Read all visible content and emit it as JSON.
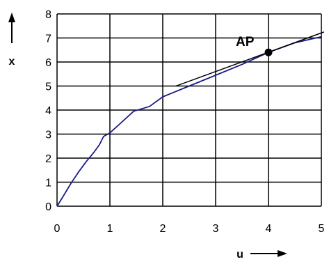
{
  "chart_data": {
    "type": "line",
    "title": "",
    "xlabel": "u",
    "ylabel": "x",
    "xlim": [
      0,
      5
    ],
    "ylim": [
      0,
      8
    ],
    "xticks": [
      "0",
      "1",
      "2",
      "3",
      "4",
      "5"
    ],
    "yticks": [
      "0",
      "1",
      "2",
      "3",
      "4",
      "5",
      "6",
      "7",
      "8"
    ],
    "grid": true,
    "legend": "none",
    "series": [
      {
        "color": "#1a1a8c",
        "points": [
          [
            0,
            0
          ],
          [
            0.1,
            0.35
          ],
          [
            0.25,
            0.9
          ],
          [
            0.4,
            1.4
          ],
          [
            0.55,
            1.85
          ],
          [
            0.7,
            2.25
          ],
          [
            0.8,
            2.55
          ],
          [
            0.88,
            2.9
          ],
          [
            1.0,
            3.05
          ],
          [
            1.2,
            3.45
          ],
          [
            1.45,
            3.95
          ],
          [
            1.75,
            4.15
          ],
          [
            2.0,
            4.55
          ],
          [
            2.5,
            5.0
          ],
          [
            3.0,
            5.45
          ],
          [
            3.5,
            5.9
          ],
          [
            4.0,
            6.4
          ],
          [
            4.5,
            6.8
          ],
          [
            5.0,
            7.05
          ]
        ]
      }
    ],
    "tangent": {
      "color": "#000000",
      "points": [
        [
          2.25,
          5.0
        ],
        [
          5.05,
          7.25
        ]
      ]
    },
    "annotation": {
      "label": "AP",
      "point": [
        4.0,
        6.4
      ],
      "color": "#000000"
    }
  }
}
